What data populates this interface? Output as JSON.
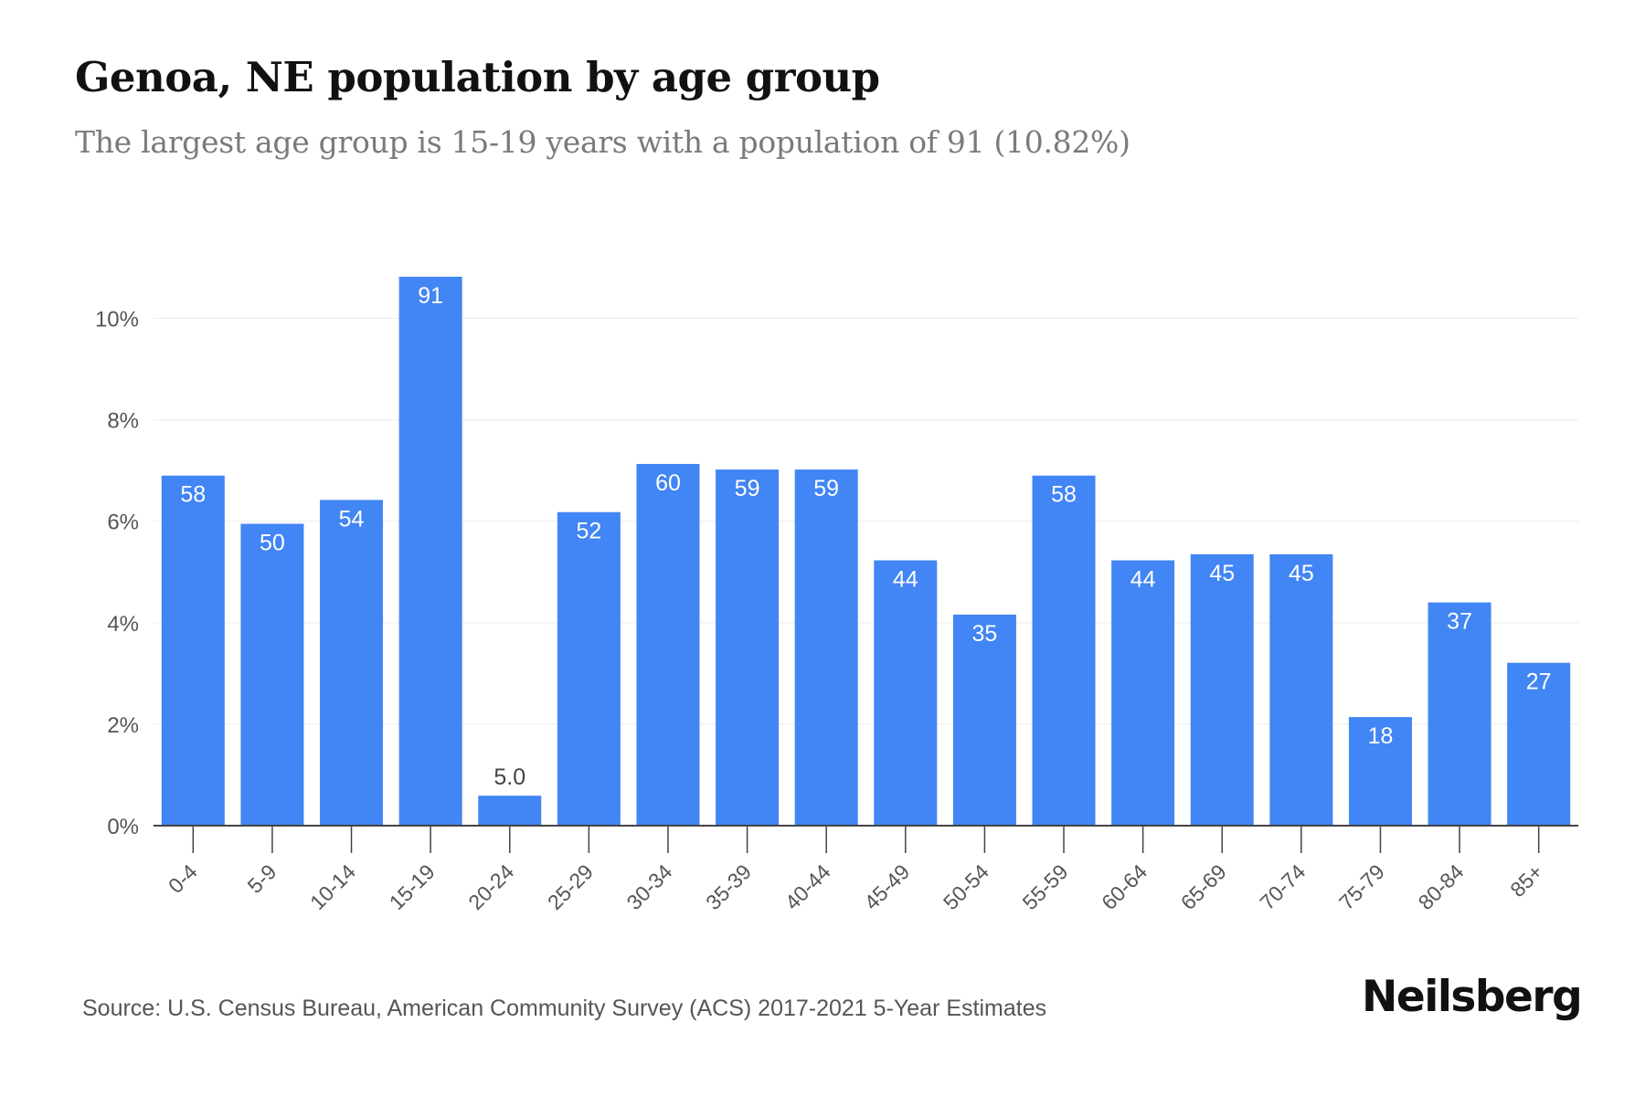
{
  "title": "Genoa, NE population by age group",
  "subtitle": "The largest age group is 15-19 years with a population of 91 (10.82%)",
  "source": "Source: U.S. Census Bureau, American Community Survey (ACS) 2017-2021 5-Year Estimates",
  "brand": "Neilsberg",
  "colors": {
    "bar": "#4285f4",
    "grid": "#ececec",
    "axis": "#444444",
    "label_inside": "#ffffff",
    "label_outside": "#444444"
  },
  "chart_data": {
    "type": "bar",
    "title": "Genoa, NE population by age group",
    "categories": [
      "0-4",
      "5-9",
      "10-14",
      "15-19",
      "20-24",
      "25-29",
      "30-34",
      "35-39",
      "40-44",
      "45-49",
      "50-54",
      "55-59",
      "60-64",
      "65-69",
      "70-74",
      "75-79",
      "80-84",
      "85+"
    ],
    "values": [
      6.9,
      5.95,
      6.42,
      10.82,
      0.59,
      6.18,
      7.13,
      7.02,
      7.02,
      5.23,
      4.16,
      6.9,
      5.23,
      5.35,
      5.35,
      2.14,
      4.4,
      3.21
    ],
    "data_labels": [
      "58",
      "50",
      "54",
      "91",
      "5.0",
      "52",
      "60",
      "59",
      "59",
      "44",
      "35",
      "58",
      "44",
      "45",
      "45",
      "18",
      "37",
      "27"
    ],
    "ylim": [
      0,
      10.82
    ],
    "yticks": [
      0,
      2,
      4,
      6,
      8,
      10
    ],
    "ytick_labels": [
      "0%",
      "2%",
      "4%",
      "6%",
      "8%",
      "10%"
    ],
    "xlabel": "",
    "ylabel": "",
    "grid": true,
    "legend": "none"
  }
}
